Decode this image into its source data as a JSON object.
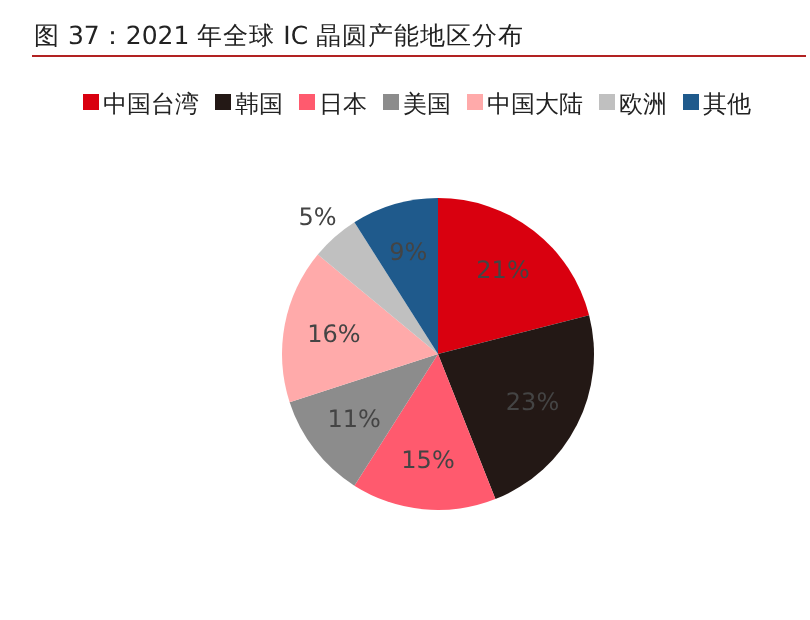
{
  "chart_data": {
    "type": "pie",
    "title": "图 37：2021 年全球 IC 晶圆产能地区分布",
    "categories": [
      "中国台湾",
      "韩国",
      "日本",
      "美国",
      "中国大陆",
      "欧洲",
      "其他"
    ],
    "values": [
      21,
      23,
      15,
      11,
      16,
      5,
      9
    ],
    "colors": [
      "#d9000f",
      "#231815",
      "#ff5a6e",
      "#8c8c8c",
      "#ffaaaa",
      "#c0c0c0",
      "#1f5a8c"
    ],
    "value_labels": [
      "21%",
      "23%",
      "15%",
      "11%",
      "16%",
      "5%",
      "9%"
    ],
    "legend": "top"
  }
}
